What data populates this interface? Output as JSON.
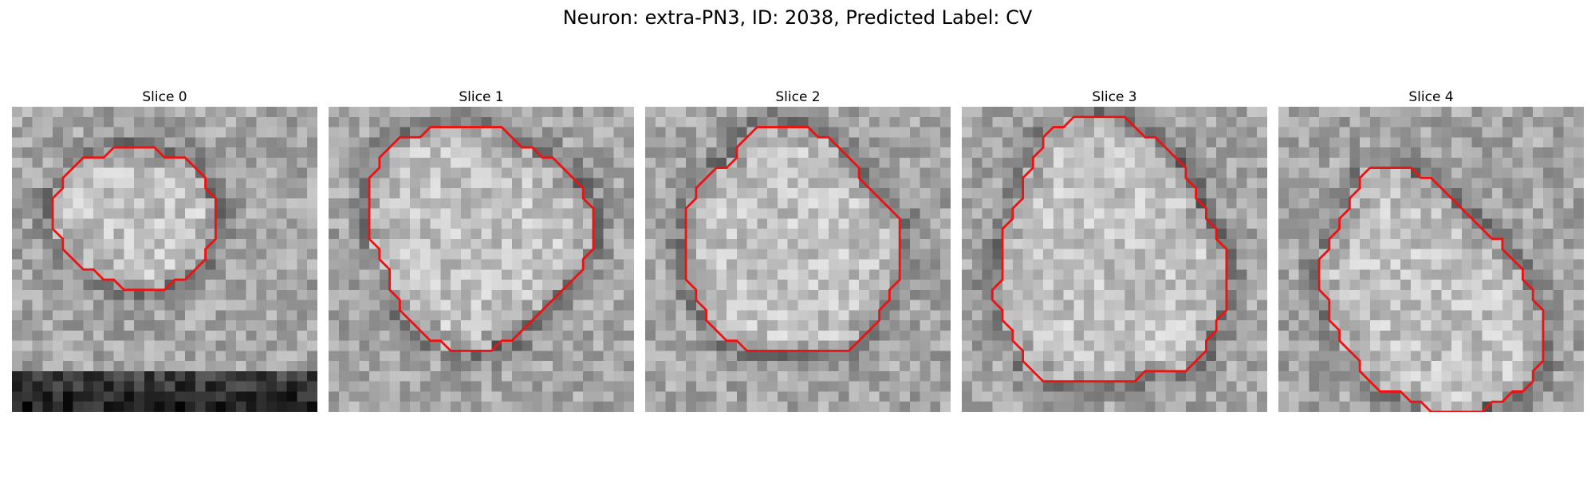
{
  "figure": {
    "title": "Neuron: extra-PN3, ID: 2038, Predicted Label: CV"
  },
  "colors": {
    "contour": "#ee1111"
  },
  "panels": [
    {
      "title": "Slice 0",
      "contour": [
        [
          10,
          4
        ],
        [
          14,
          4
        ],
        [
          15,
          5
        ],
        [
          17,
          5
        ],
        [
          18,
          6
        ],
        [
          19,
          7
        ],
        [
          19,
          8
        ],
        [
          20,
          9
        ],
        [
          20,
          13
        ],
        [
          19,
          14
        ],
        [
          19,
          15
        ],
        [
          18,
          16
        ],
        [
          17,
          17
        ],
        [
          16,
          17
        ],
        [
          15,
          18
        ],
        [
          11,
          18
        ],
        [
          10,
          17
        ],
        [
          9,
          17
        ],
        [
          8,
          16
        ],
        [
          7,
          16
        ],
        [
          6,
          15
        ],
        [
          5,
          14
        ],
        [
          5,
          13
        ],
        [
          4,
          12
        ],
        [
          4,
          9
        ],
        [
          5,
          8
        ],
        [
          5,
          7
        ],
        [
          6,
          6
        ],
        [
          7,
          5
        ],
        [
          9,
          5
        ]
      ]
    },
    {
      "title": "Slice 1",
      "contour": [
        [
          12,
          2
        ],
        [
          17,
          2
        ],
        [
          18,
          3
        ],
        [
          19,
          4
        ],
        [
          20,
          4
        ],
        [
          21,
          5
        ],
        [
          22,
          5
        ],
        [
          23,
          6
        ],
        [
          24,
          7
        ],
        [
          25,
          8
        ],
        [
          25,
          9
        ],
        [
          26,
          10
        ],
        [
          26,
          14
        ],
        [
          25,
          15
        ],
        [
          25,
          16
        ],
        [
          24,
          17
        ],
        [
          23,
          18
        ],
        [
          22,
          19
        ],
        [
          21,
          20
        ],
        [
          20,
          21
        ],
        [
          19,
          22
        ],
        [
          18,
          23
        ],
        [
          17,
          23
        ],
        [
          16,
          24
        ],
        [
          12,
          24
        ],
        [
          11,
          23
        ],
        [
          10,
          23
        ],
        [
          9,
          22
        ],
        [
          8,
          21
        ],
        [
          7,
          20
        ],
        [
          7,
          19
        ],
        [
          6,
          18
        ],
        [
          6,
          16
        ],
        [
          5,
          15
        ],
        [
          5,
          14
        ],
        [
          4,
          13
        ],
        [
          4,
          7
        ],
        [
          5,
          6
        ],
        [
          5,
          5
        ],
        [
          6,
          4
        ],
        [
          7,
          3
        ],
        [
          8,
          3
        ],
        [
          9,
          3
        ],
        [
          10,
          2
        ]
      ]
    },
    {
      "title": "Slice 2",
      "contour": [
        [
          11,
          2
        ],
        [
          16,
          2
        ],
        [
          17,
          3
        ],
        [
          18,
          3
        ],
        [
          19,
          4
        ],
        [
          20,
          5
        ],
        [
          21,
          6
        ],
        [
          21,
          7
        ],
        [
          22,
          8
        ],
        [
          23,
          9
        ],
        [
          24,
          10
        ],
        [
          25,
          11
        ],
        [
          25,
          17
        ],
        [
          24,
          18
        ],
        [
          24,
          19
        ],
        [
          23,
          20
        ],
        [
          23,
          21
        ],
        [
          22,
          22
        ],
        [
          21,
          23
        ],
        [
          20,
          24
        ],
        [
          10,
          24
        ],
        [
          9,
          23
        ],
        [
          8,
          23
        ],
        [
          7,
          22
        ],
        [
          6,
          21
        ],
        [
          6,
          20
        ],
        [
          5,
          19
        ],
        [
          5,
          18
        ],
        [
          4,
          17
        ],
        [
          4,
          10
        ],
        [
          5,
          9
        ],
        [
          5,
          8
        ],
        [
          6,
          7
        ],
        [
          7,
          6
        ],
        [
          8,
          6
        ],
        [
          9,
          5
        ],
        [
          9,
          4
        ],
        [
          10,
          3
        ]
      ]
    },
    {
      "title": "Slice 3",
      "contour": [
        [
          12,
          1
        ],
        [
          16,
          1
        ],
        [
          17,
          2
        ],
        [
          18,
          3
        ],
        [
          19,
          3
        ],
        [
          20,
          4
        ],
        [
          21,
          5
        ],
        [
          22,
          6
        ],
        [
          22,
          7
        ],
        [
          23,
          8
        ],
        [
          23,
          9
        ],
        [
          24,
          10
        ],
        [
          24,
          11
        ],
        [
          25,
          12
        ],
        [
          25,
          13
        ],
        [
          26,
          14
        ],
        [
          26,
          20
        ],
        [
          25,
          21
        ],
        [
          25,
          22
        ],
        [
          24,
          23
        ],
        [
          24,
          24
        ],
        [
          23,
          25
        ],
        [
          22,
          26
        ],
        [
          18,
          26
        ],
        [
          17,
          27
        ],
        [
          8,
          27
        ],
        [
          7,
          26
        ],
        [
          6,
          25
        ],
        [
          6,
          24
        ],
        [
          5,
          23
        ],
        [
          5,
          22
        ],
        [
          4,
          21
        ],
        [
          4,
          20
        ],
        [
          3,
          19
        ],
        [
          3,
          18
        ],
        [
          4,
          17
        ],
        [
          4,
          12
        ],
        [
          5,
          11
        ],
        [
          5,
          10
        ],
        [
          6,
          9
        ],
        [
          6,
          7
        ],
        [
          7,
          6
        ],
        [
          7,
          5
        ],
        [
          8,
          4
        ],
        [
          8,
          3
        ],
        [
          9,
          2
        ],
        [
          10,
          2
        ],
        [
          11,
          1
        ]
      ]
    },
    {
      "title": "Slice 4",
      "contour": [
        [
          9,
          6
        ],
        [
          13,
          6
        ],
        [
          14,
          7
        ],
        [
          15,
          7
        ],
        [
          16,
          8
        ],
        [
          17,
          9
        ],
        [
          18,
          10
        ],
        [
          19,
          11
        ],
        [
          20,
          12
        ],
        [
          21,
          13
        ],
        [
          22,
          13
        ],
        [
          22,
          14
        ],
        [
          23,
          15
        ],
        [
          24,
          16
        ],
        [
          24,
          17
        ],
        [
          25,
          18
        ],
        [
          25,
          19
        ],
        [
          26,
          20
        ],
        [
          26,
          25
        ],
        [
          25,
          26
        ],
        [
          25,
          27
        ],
        [
          24,
          28
        ],
        [
          23,
          28
        ],
        [
          22,
          29
        ],
        [
          21,
          29
        ],
        [
          20,
          30
        ],
        [
          15,
          30
        ],
        [
          14,
          29
        ],
        [
          13,
          29
        ],
        [
          12,
          28
        ],
        [
          10,
          28
        ],
        [
          9,
          27
        ],
        [
          8,
          26
        ],
        [
          8,
          25
        ],
        [
          7,
          24
        ],
        [
          6,
          23
        ],
        [
          6,
          22
        ],
        [
          5,
          21
        ],
        [
          5,
          19
        ],
        [
          4,
          18
        ],
        [
          4,
          15
        ],
        [
          5,
          14
        ],
        [
          5,
          13
        ],
        [
          6,
          12
        ],
        [
          6,
          11
        ],
        [
          7,
          10
        ],
        [
          7,
          9
        ],
        [
          8,
          8
        ],
        [
          8,
          7
        ]
      ]
    }
  ]
}
